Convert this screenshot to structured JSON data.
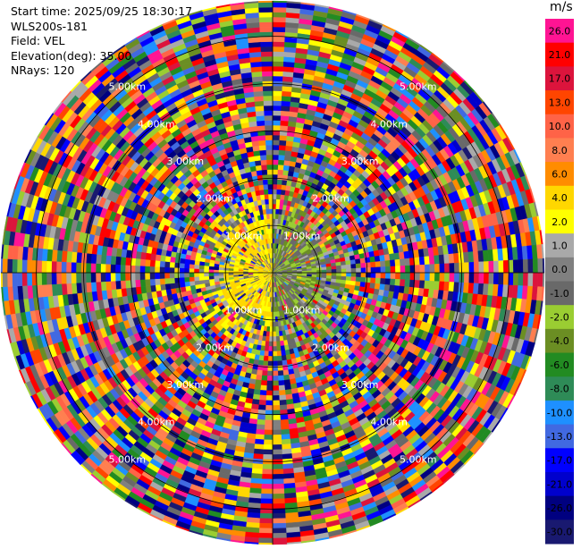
{
  "info": {
    "start_time": "Start time: 2025/09/25 18:30:17",
    "instrument": "WLS200s-181",
    "field": "Field: VEL",
    "elevation": "Elevation(deg): 35.00",
    "nrays": "NRays: 120"
  },
  "chart_data": {
    "type": "heatmap",
    "subtype": "polar PPI (plan position indicator)",
    "field": "VEL",
    "elevation_deg": 35.0,
    "n_rays": 120,
    "range_rings_km": [
      1.0,
      2.0,
      3.0,
      4.0,
      5.0
    ],
    "ring_labels": [
      "1.00km",
      "2.00km",
      "3.00km",
      "4.00km",
      "5.00km"
    ],
    "max_range_km": 5.75,
    "near_field_pattern": "west half near radar mostly +2 to +4 m/s (yellow), east half mostly -1 to -4 m/s (green); beyond ~1.5 km values appear random across full scale",
    "colorbar": {
      "unit": "m/s",
      "ticks": [
        "26.0",
        "21.0",
        "17.0",
        "13.0",
        "10.0",
        "8.0",
        "6.0",
        "4.0",
        "2.0",
        "1.0",
        "0.0",
        "-1.0",
        "-2.0",
        "-4.0",
        "-6.0",
        "-8.0",
        "-10.0",
        "-13.0",
        "-17.0",
        "-21.0",
        "-26.0",
        "-30.0"
      ],
      "colors": [
        "#ff1493",
        "#ff0000",
        "#dc143c",
        "#ff4500",
        "#ff6347",
        "#ff7f50",
        "#ff8c00",
        "#ffd700",
        "#ffff00",
        "#a9a9a9",
        "#808080",
        "#696969",
        "#9acd32",
        "#6b8e23",
        "#228b22",
        "#2e8b57",
        "#1e90ff",
        "#4169e1",
        "#0000ff",
        "#0000cd",
        "#000080",
        "#191970"
      ]
    }
  }
}
